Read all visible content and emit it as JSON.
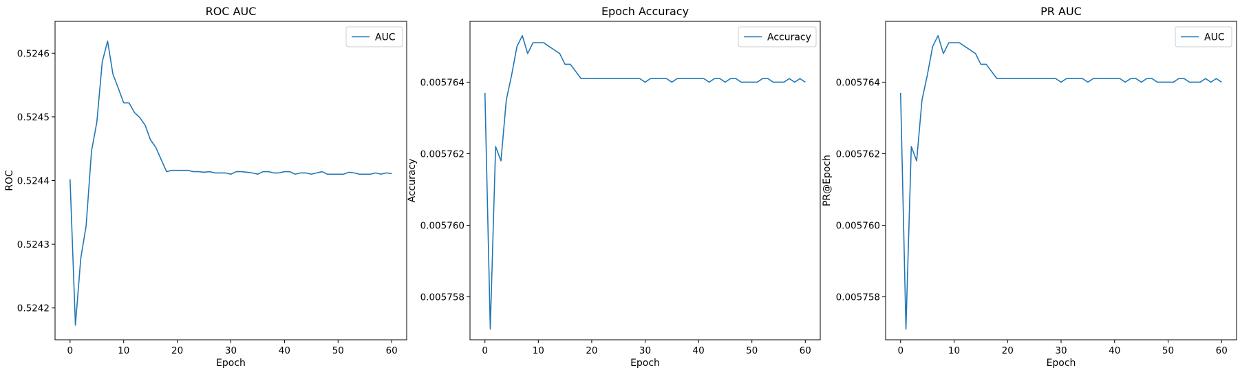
{
  "style": {
    "line_color": "#1f77b4",
    "background": "#ffffff",
    "axes_color": "#000000"
  },
  "chart_data": [
    {
      "type": "line",
      "title": "ROC AUC",
      "xlabel": "Epoch",
      "ylabel": "ROC",
      "xlim": [
        -2.8,
        62.8
      ],
      "ylim": [
        0.52415,
        0.52465
      ],
      "xticks": [
        0,
        10,
        20,
        30,
        40,
        50,
        60
      ],
      "yticks": [
        0.5242,
        0.5243,
        0.5244,
        0.5245,
        0.5246
      ],
      "ytick_decimals": 4,
      "grid": false,
      "legend_position": "upper right",
      "series": [
        {
          "name": "AUC",
          "color": "#1f77b4",
          "x": [
            0,
            1,
            2,
            3,
            4,
            5,
            6,
            7,
            8,
            9,
            10,
            11,
            12,
            13,
            14,
            15,
            16,
            17,
            18,
            19,
            20,
            21,
            22,
            23,
            24,
            25,
            26,
            27,
            28,
            29,
            30,
            31,
            32,
            33,
            34,
            35,
            36,
            37,
            38,
            39,
            40,
            41,
            42,
            43,
            44,
            45,
            46,
            47,
            48,
            49,
            50,
            51,
            52,
            53,
            54,
            55,
            56,
            57,
            58,
            59,
            60
          ],
          "y": [
            0.524402,
            0.524173,
            0.524278,
            0.524329,
            0.524446,
            0.524492,
            0.524586,
            0.524619,
            0.524567,
            0.524545,
            0.524522,
            0.524522,
            0.524507,
            0.524499,
            0.524487,
            0.524464,
            0.524452,
            0.524433,
            0.524414,
            0.524416,
            0.524416,
            0.524416,
            0.524416,
            0.524414,
            0.524414,
            0.524413,
            0.524414,
            0.524412,
            0.524412,
            0.524412,
            0.52441,
            0.524414,
            0.524414,
            0.524413,
            0.524412,
            0.52441,
            0.524414,
            0.524414,
            0.524412,
            0.524412,
            0.524414,
            0.524414,
            0.52441,
            0.524412,
            0.524412,
            0.52441,
            0.524412,
            0.524414,
            0.52441,
            0.52441,
            0.52441,
            0.52441,
            0.524413,
            0.524412,
            0.52441,
            0.52441,
            0.52441,
            0.524412,
            0.52441,
            0.524412,
            0.524411
          ]
        }
      ]
    },
    {
      "type": "line",
      "title": "Epoch Accuracy",
      "xlabel": "Epoch",
      "ylabel": "Accuracy",
      "xlim": [
        -2.8,
        62.8
      ],
      "ylim": [
        0.0057568,
        0.0057657
      ],
      "xticks": [
        0,
        10,
        20,
        30,
        40,
        50,
        60
      ],
      "yticks": [
        0.005758,
        0.00576,
        0.005762,
        0.005764
      ],
      "ytick_decimals": 6,
      "grid": false,
      "legend_position": "upper right",
      "series": [
        {
          "name": "Accuracy",
          "color": "#1f77b4",
          "x": [
            0,
            1,
            2,
            3,
            4,
            5,
            6,
            7,
            8,
            9,
            10,
            11,
            12,
            13,
            14,
            15,
            16,
            17,
            18,
            19,
            20,
            21,
            22,
            23,
            24,
            25,
            26,
            27,
            28,
            29,
            30,
            31,
            32,
            33,
            34,
            35,
            36,
            37,
            38,
            39,
            40,
            41,
            42,
            43,
            44,
            45,
            46,
            47,
            48,
            49,
            50,
            51,
            52,
            53,
            54,
            55,
            56,
            57,
            58,
            59,
            60
          ],
          "y": [
            0.0057637,
            0.0057571,
            0.0057622,
            0.0057618,
            0.0057635,
            0.0057642,
            0.005765,
            0.0057653,
            0.0057648,
            0.0057651,
            0.0057651,
            0.0057651,
            0.005765,
            0.0057649,
            0.0057648,
            0.0057645,
            0.0057645,
            0.0057643,
            0.0057641,
            0.0057641,
            0.0057641,
            0.0057641,
            0.0057641,
            0.0057641,
            0.0057641,
            0.0057641,
            0.0057641,
            0.0057641,
            0.0057641,
            0.0057641,
            0.005764,
            0.0057641,
            0.0057641,
            0.0057641,
            0.0057641,
            0.005764,
            0.0057641,
            0.0057641,
            0.0057641,
            0.0057641,
            0.0057641,
            0.0057641,
            0.005764,
            0.0057641,
            0.0057641,
            0.005764,
            0.0057641,
            0.0057641,
            0.005764,
            0.005764,
            0.005764,
            0.005764,
            0.0057641,
            0.0057641,
            0.005764,
            0.005764,
            0.005764,
            0.0057641,
            0.005764,
            0.0057641,
            0.005764
          ]
        }
      ]
    },
    {
      "type": "line",
      "title": "PR AUC",
      "xlabel": "Epoch",
      "ylabel": "PR@Epoch",
      "xlim": [
        -2.8,
        62.8
      ],
      "ylim": [
        0.0057568,
        0.0057657
      ],
      "xticks": [
        0,
        10,
        20,
        30,
        40,
        50,
        60
      ],
      "yticks": [
        0.005758,
        0.00576,
        0.005762,
        0.005764
      ],
      "ytick_decimals": 6,
      "grid": false,
      "legend_position": "upper right",
      "series": [
        {
          "name": "AUC",
          "color": "#1f77b4",
          "x": [
            0,
            1,
            2,
            3,
            4,
            5,
            6,
            7,
            8,
            9,
            10,
            11,
            12,
            13,
            14,
            15,
            16,
            17,
            18,
            19,
            20,
            21,
            22,
            23,
            24,
            25,
            26,
            27,
            28,
            29,
            30,
            31,
            32,
            33,
            34,
            35,
            36,
            37,
            38,
            39,
            40,
            41,
            42,
            43,
            44,
            45,
            46,
            47,
            48,
            49,
            50,
            51,
            52,
            53,
            54,
            55,
            56,
            57,
            58,
            59,
            60
          ],
          "y": [
            0.0057637,
            0.0057571,
            0.0057622,
            0.0057618,
            0.0057635,
            0.0057642,
            0.005765,
            0.0057653,
            0.0057648,
            0.0057651,
            0.0057651,
            0.0057651,
            0.005765,
            0.0057649,
            0.0057648,
            0.0057645,
            0.0057645,
            0.0057643,
            0.0057641,
            0.0057641,
            0.0057641,
            0.0057641,
            0.0057641,
            0.0057641,
            0.0057641,
            0.0057641,
            0.0057641,
            0.0057641,
            0.0057641,
            0.0057641,
            0.005764,
            0.0057641,
            0.0057641,
            0.0057641,
            0.0057641,
            0.005764,
            0.0057641,
            0.0057641,
            0.0057641,
            0.0057641,
            0.0057641,
            0.0057641,
            0.005764,
            0.0057641,
            0.0057641,
            0.005764,
            0.0057641,
            0.0057641,
            0.005764,
            0.005764,
            0.005764,
            0.005764,
            0.0057641,
            0.0057641,
            0.005764,
            0.005764,
            0.005764,
            0.0057641,
            0.005764,
            0.0057641,
            0.005764
          ]
        }
      ]
    }
  ]
}
